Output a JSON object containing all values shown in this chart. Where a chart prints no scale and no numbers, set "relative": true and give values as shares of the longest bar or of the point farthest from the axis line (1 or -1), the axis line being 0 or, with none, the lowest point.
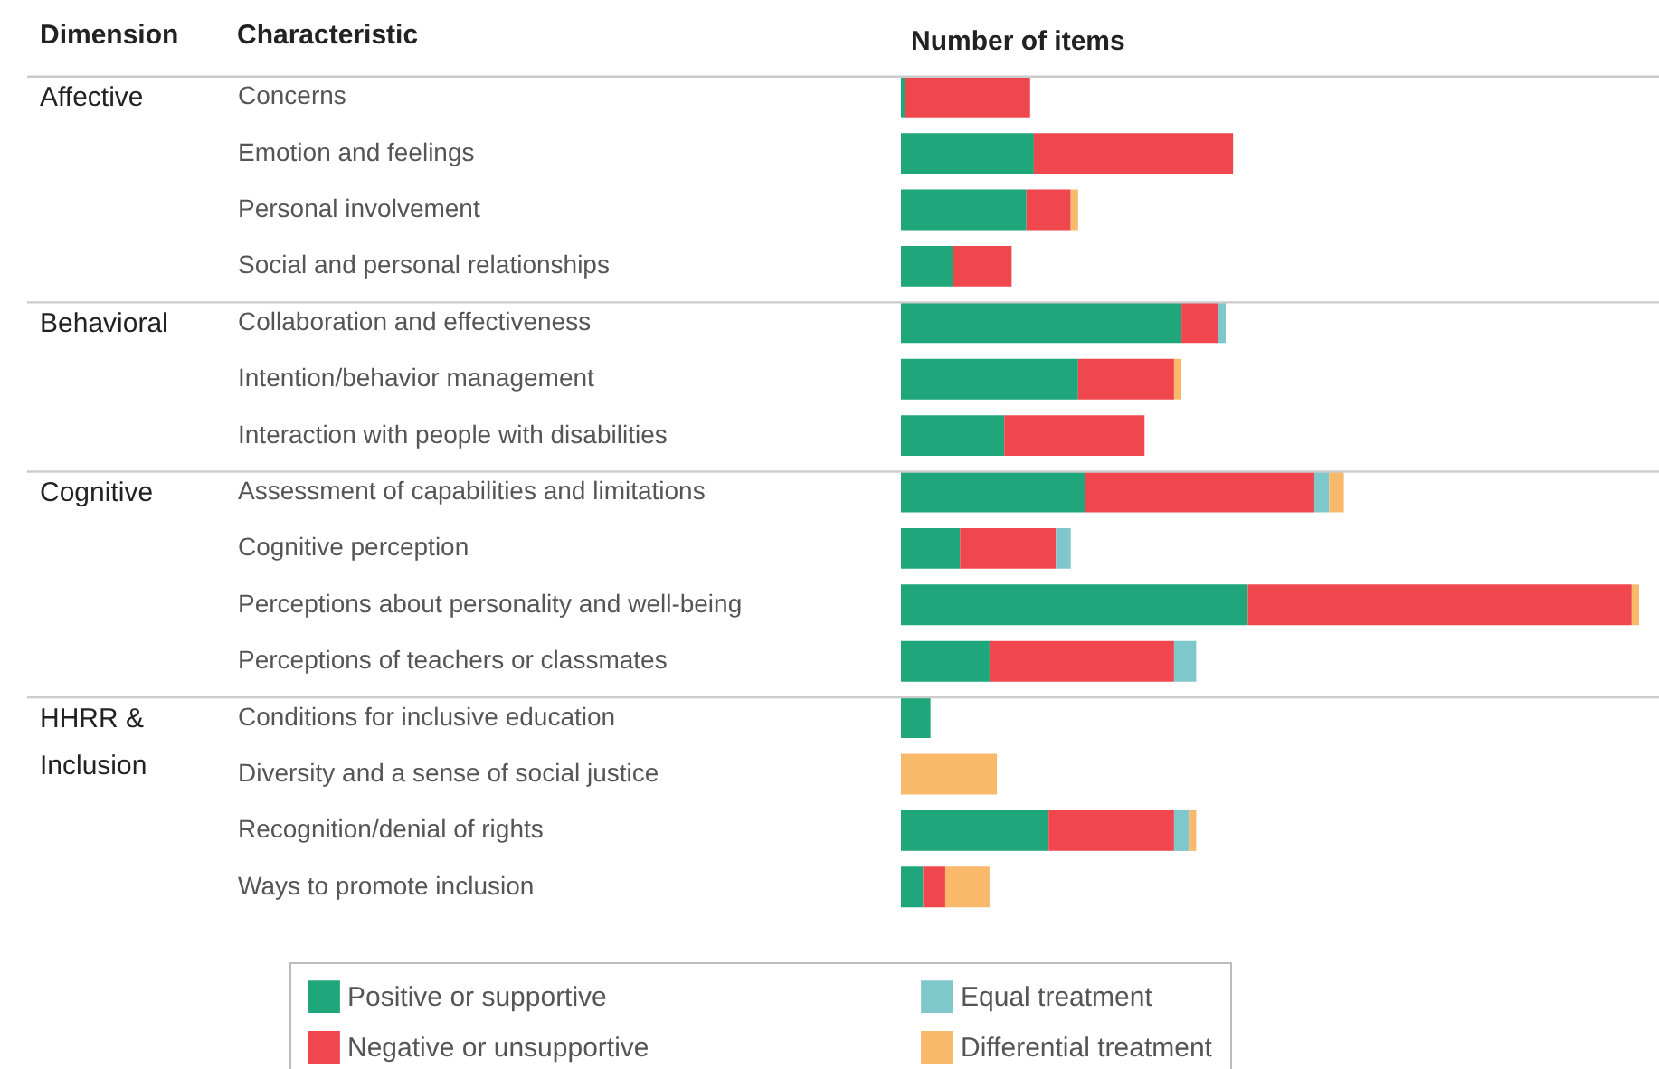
{
  "chart_data": {
    "type": "bar",
    "orientation": "horizontal",
    "stacked": true,
    "relative": true,
    "xlabel": "Number of items",
    "categories": [
      "Concerns",
      "Emotion and feelings",
      "Personal involvement",
      "Social and personal relationships",
      "Collaboration and effectiveness",
      "Intention/behavior management",
      "Interaction with people with disabilities",
      "Assessment of capabilities and limitations",
      "Cognitive perception",
      "Perceptions about personality and well-being",
      "Perceptions of teachers or classmates",
      "Conditions for inclusive education",
      "Diversity and a sense of social justice",
      "Recognition/denial of rights",
      "Ways to promote inclusion"
    ],
    "series": [
      {
        "name": "Positive or supportive",
        "color": "#1fa67a",
        "values": [
          0.005,
          0.18,
          0.17,
          0.07,
          0.38,
          0.24,
          0.14,
          0.25,
          0.08,
          0.47,
          0.12,
          0.04,
          null,
          0.2,
          0.03
        ]
      },
      {
        "name": "Negative or unsupportive",
        "color": "#f0474f",
        "values": [
          0.17,
          0.27,
          0.06,
          0.08,
          0.05,
          0.13,
          0.19,
          0.31,
          0.13,
          0.52,
          0.25,
          null,
          null,
          0.17,
          0.03
        ]
      },
      {
        "name": "Equal treatment",
        "color": "#7ec8cc",
        "values": [
          null,
          null,
          null,
          null,
          0.01,
          null,
          null,
          0.02,
          0.02,
          null,
          0.03,
          null,
          null,
          0.02,
          null
        ]
      },
      {
        "name": "Differential treatment",
        "color": "#f9b96b",
        "values": [
          null,
          null,
          0.01,
          null,
          null,
          0.01,
          null,
          0.02,
          null,
          0.01,
          null,
          null,
          0.13,
          0.01,
          0.06
        ]
      }
    ],
    "annotations": [
      "Dimension",
      "Characteristic",
      "Affective",
      "Behavioral",
      "Cognitive",
      "HHRR & Inclusion"
    ],
    "legend": "bottom"
  }
}
